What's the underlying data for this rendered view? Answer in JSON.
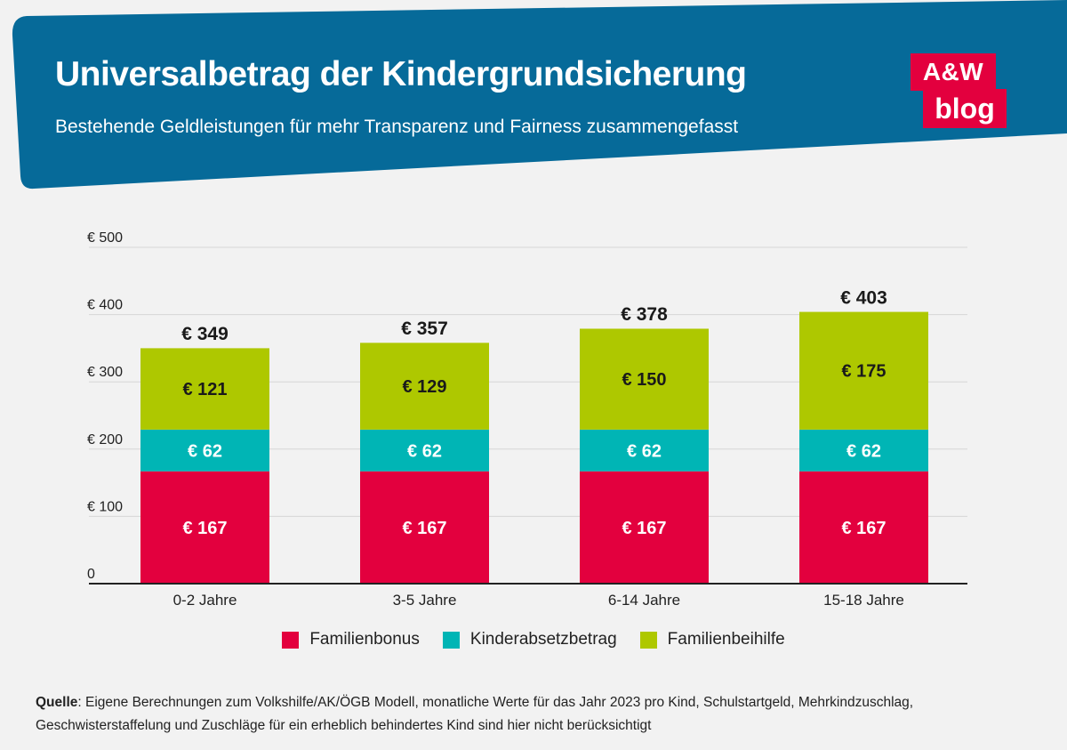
{
  "header": {
    "title": "Universalbetrag der Kindergrundsicherung",
    "subtitle": "Bestehende Geldleistungen für mehr Transparenz und Fairness zusammengefasst",
    "banner_color": "#066a99"
  },
  "logo": {
    "line1": "A&W",
    "line2": "blog",
    "color": "#e3003e"
  },
  "chart_data": {
    "type": "bar",
    "stacked": true,
    "title": "Universalbetrag der Kindergrundsicherung",
    "xlabel": "",
    "ylabel": "",
    "ylim": [
      0,
      500
    ],
    "yticks": [
      0,
      100,
      200,
      300,
      400,
      500
    ],
    "ytick_labels": [
      "0",
      "€ 100",
      "€ 200",
      "€ 300",
      "€ 400",
      "€ 500"
    ],
    "categories": [
      "0-2 Jahre",
      "3-5 Jahre",
      "6-14 Jahre",
      "15-18 Jahre"
    ],
    "series": [
      {
        "name": "Familienbonus",
        "values": [
          167,
          167,
          167,
          167
        ],
        "labels": [
          "€ 167",
          "€ 167",
          "€ 167",
          "€ 167"
        ],
        "color": "#e3003e"
      },
      {
        "name": "Kinderabsetzbetrag",
        "values": [
          62,
          62,
          62,
          62
        ],
        "labels": [
          "€ 62",
          "€ 62",
          "€ 62",
          "€ 62"
        ],
        "color": "#00b5b5"
      },
      {
        "name": "Familienbeihilfe",
        "values": [
          121,
          129,
          150,
          175
        ],
        "labels": [
          "€ 121",
          "€ 129",
          "€ 150",
          "€ 175"
        ],
        "color": "#aec800"
      }
    ],
    "totals": [
      349,
      357,
      378,
      403
    ],
    "total_labels": [
      "€ 349",
      "€ 357",
      "€ 378",
      "€ 403"
    ],
    "grid": true,
    "legend_position": "bottom-center"
  },
  "source": {
    "label": "Quelle",
    "text": ": Eigene Berechnungen zum Volkshilfe/AK/ÖGB Modell, monatliche Werte für das Jahr 2023 pro Kind, Schulstartgeld, Mehrkindzuschlag, Geschwisterstaffelung und Zuschläge für ein erheblich behindertes Kind sind hier nicht berücksichtigt"
  }
}
